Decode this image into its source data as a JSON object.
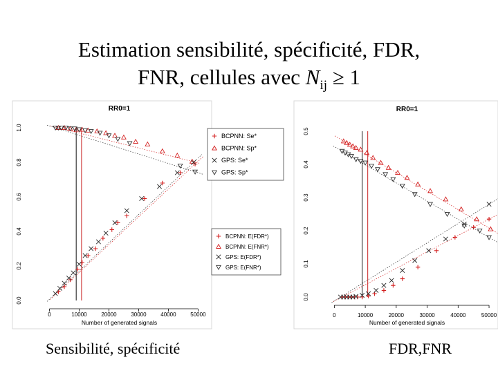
{
  "slide": {
    "title_line1": "Estimation sensibilité, spécificité, FDR,",
    "title_line2_prefix": "FNR, cellules avec ",
    "title_symbol": "N",
    "title_subscript": "ij",
    "title_line2_suffix": " ≥ 1",
    "caption_left": "Sensibilité, spécificité",
    "caption_right": "FDR,FNR"
  },
  "colors": {
    "bcpnn": "#d42020",
    "gps": "#333333",
    "ref_red": "#c81e1e",
    "ref_black": "#111111"
  },
  "chart_data": [
    {
      "type": "scatter",
      "title": "RR0=1",
      "xlabel": "Number of generated signals",
      "ylabel": "",
      "xlim": [
        -5000,
        52000
      ],
      "ylim": [
        0,
        1.0
      ],
      "x_ticks": [
        0,
        10000,
        20000,
        30000,
        40000,
        50000
      ],
      "x_tick_labels": [
        "0",
        "10000",
        "20000",
        "30000",
        "40000",
        "50000"
      ],
      "y_ticks": [
        0,
        0.2,
        0.4,
        0.6,
        0.8,
        1.0
      ],
      "y_tick_labels": [
        "0.0",
        "0.2",
        "0.4",
        "0.6",
        "0.8",
        "1.0"
      ],
      "vlines": [
        {
          "x": 9000,
          "color": "black"
        },
        {
          "x": 10800,
          "color": "red"
        }
      ],
      "legend": [
        "BCPNN: Se*",
        "BCPNN: Sp*",
        "GPS: Se*",
        "GPS: Sp*"
      ],
      "legend_position": "right",
      "series": [
        {
          "name": "BCPNN: Se*",
          "marker": "plus",
          "color": "red",
          "x": [
            3000,
            5000,
            7000,
            9500,
            11000,
            13000,
            15500,
            18000,
            21000,
            23000,
            26000,
            32000,
            38000,
            44000,
            49000
          ],
          "y": [
            0.05,
            0.08,
            0.12,
            0.18,
            0.22,
            0.26,
            0.3,
            0.36,
            0.41,
            0.45,
            0.49,
            0.59,
            0.68,
            0.74,
            0.79
          ]
        },
        {
          "name": "BCPNN: Sp*",
          "marker": "triangle-up",
          "color": "red",
          "x": [
            3000,
            5000,
            7000,
            9000,
            11000,
            13000,
            16000,
            19000,
            22000,
            25000,
            29000,
            33000,
            38000,
            43000,
            48000
          ],
          "y": [
            1.0,
            1.0,
            0.995,
            0.99,
            0.99,
            0.985,
            0.98,
            0.97,
            0.955,
            0.945,
            0.92,
            0.905,
            0.865,
            0.84,
            0.805
          ]
        },
        {
          "name": "GPS: Se*",
          "marker": "x",
          "color": "black",
          "x": [
            2000,
            3500,
            5000,
            6500,
            8000,
            10000,
            12000,
            14000,
            16500,
            19000,
            22000,
            26000,
            31000,
            37000,
            43000,
            48500
          ],
          "y": [
            0.04,
            0.07,
            0.1,
            0.13,
            0.16,
            0.21,
            0.26,
            0.3,
            0.34,
            0.39,
            0.45,
            0.52,
            0.59,
            0.66,
            0.74,
            0.8
          ]
        },
        {
          "name": "GPS: Sp*",
          "marker": "triangle-down",
          "color": "black",
          "x": [
            2000,
            3000,
            4000,
            5500,
            7000,
            8500,
            10000,
            12000,
            14000,
            17000,
            20000,
            23000,
            27000,
            44000,
            49000
          ],
          "y": [
            1.0,
            1.0,
            1.0,
            1.0,
            0.995,
            0.995,
            0.99,
            0.985,
            0.98,
            0.97,
            0.955,
            0.935,
            0.91,
            0.78,
            0.745
          ]
        }
      ]
    },
    {
      "type": "scatter",
      "title": "RR0=1",
      "xlabel": "Number of generated signals",
      "ylabel": "",
      "xlim": [
        -5000,
        52000
      ],
      "ylim": [
        0,
        0.5
      ],
      "x_ticks": [
        0,
        10000,
        20000,
        30000,
        40000,
        50000
      ],
      "x_tick_labels": [
        "0",
        "10000",
        "20000",
        "30000",
        "40000",
        "50000"
      ],
      "y_ticks": [
        0,
        0.1,
        0.2,
        0.3,
        0.4,
        0.5
      ],
      "y_tick_labels": [
        "0.0",
        "0.1",
        "0.2",
        "0.3",
        "0.4",
        "0.5"
      ],
      "vlines": [
        {
          "x": 9000,
          "color": "black"
        },
        {
          "x": 10800,
          "color": "red"
        }
      ],
      "legend": [
        "BCPNN: E(FDR*)",
        "BCPNN: E(FNR*)",
        "GPS: E(FDR*)",
        "GPS: E(FNR*)"
      ],
      "legend_position": "left",
      "series": [
        {
          "name": "BCPNN: E(FDR*)",
          "marker": "plus",
          "color": "red",
          "x": [
            2500,
            3500,
            4500,
            5500,
            6500,
            7500,
            9000,
            11000,
            13000,
            16000,
            19000,
            22000,
            27000,
            33000,
            39000,
            45000,
            50000
          ],
          "y": [
            0.0,
            0.0,
            0.0,
            0.0,
            0.0,
            0.0,
            0.0,
            0.003,
            0.01,
            0.02,
            0.035,
            0.055,
            0.09,
            0.14,
            0.18,
            0.21,
            0.235
          ]
        },
        {
          "name": "BCPNN: E(FNR*)",
          "marker": "triangle-up",
          "color": "red",
          "x": [
            3000,
            4000,
            5000,
            6000,
            7000,
            8500,
            10500,
            12500,
            15000,
            17500,
            20500,
            23500,
            27000,
            31000,
            36000,
            41000,
            46000,
            50500
          ],
          "y": [
            0.47,
            0.465,
            0.46,
            0.455,
            0.45,
            0.445,
            0.435,
            0.42,
            0.405,
            0.39,
            0.375,
            0.36,
            0.34,
            0.32,
            0.295,
            0.265,
            0.235,
            0.205
          ]
        },
        {
          "name": "GPS: E(FDR*)",
          "marker": "x",
          "color": "black",
          "x": [
            2000,
            3000,
            4000,
            5000,
            6000,
            7000,
            9000,
            11000,
            13500,
            16000,
            18500,
            22000,
            26000,
            30500,
            36000,
            42000,
            50000
          ],
          "y": [
            0.0,
            0.0,
            0.0,
            0.0,
            0.0,
            0.002,
            0.005,
            0.01,
            0.02,
            0.035,
            0.05,
            0.08,
            0.11,
            0.14,
            0.175,
            0.22,
            0.28
          ]
        },
        {
          "name": "GPS: E(FNR*)",
          "marker": "triangle-down",
          "color": "black",
          "x": [
            2500,
            3500,
            4500,
            5500,
            7000,
            8500,
            10000,
            12000,
            14000,
            16500,
            19000,
            22000,
            26000,
            31000,
            36500,
            42000,
            47000,
            50000
          ],
          "y": [
            0.44,
            0.435,
            0.43,
            0.425,
            0.415,
            0.41,
            0.405,
            0.395,
            0.385,
            0.37,
            0.355,
            0.335,
            0.31,
            0.28,
            0.25,
            0.215,
            0.2,
            0.18
          ]
        }
      ]
    }
  ]
}
